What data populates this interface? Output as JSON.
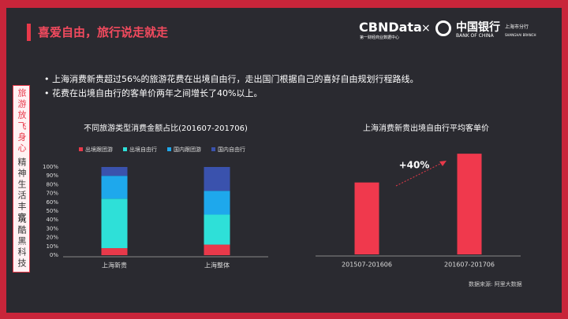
{
  "header": {
    "title": "喜爱自由，旅行说走就走",
    "cbn_logo": "CBNData",
    "cbn_sub": "第一财经商业数据中心",
    "times": "×",
    "boc_name": "中国银行",
    "boc_en": "BANK OF CHINA",
    "boc_branch": "上海市分行",
    "boc_branch_en": "SHANGHAI BRANCH"
  },
  "sidebar": [
    "旅游放飞身心",
    "精神生活丰富",
    "玩酷黑科技"
  ],
  "bullets": [
    "上海消费新贵超过56%的旅游花费在出境自由行，走出国门根据自己的喜好自由规划行程路线。",
    "花费在出境自由行的客单价两年之间增长了40%以上。"
  ],
  "source": "数据来源: 阿里大数据",
  "chart_data": [
    {
      "type": "bar",
      "stacked": true,
      "title": "不同旅游类型消费金额占比(201607-201706)",
      "categories": [
        "上海新贵",
        "上海整体"
      ],
      "series": [
        {
          "name": "出境跟团游",
          "color": "#e8394a",
          "values": [
            8,
            12
          ]
        },
        {
          "name": "出境自由行",
          "color": "#2ee0d8",
          "values": [
            56,
            34
          ]
        },
        {
          "name": "国内跟团游",
          "color": "#1ea8ec",
          "values": [
            26,
            27
          ]
        },
        {
          "name": "国内自由行",
          "color": "#3a52ad",
          "values": [
            10,
            27
          ]
        }
      ],
      "ylim": [
        0,
        100
      ],
      "yticks": [
        {
          "value": 0,
          "label": "0%"
        },
        {
          "value": 10,
          "label": "10%"
        },
        {
          "value": 20,
          "label": "20%"
        },
        {
          "value": 30,
          "label": "30%"
        },
        {
          "value": 40,
          "label": "40%"
        },
        {
          "value": 50,
          "label": "50%"
        },
        {
          "value": 60,
          "label": "60%"
        },
        {
          "value": 70,
          "label": "70%"
        },
        {
          "value": 80,
          "label": "80%"
        },
        {
          "value": 90,
          "label": "90%"
        },
        {
          "value": 100,
          "label": "100%"
        }
      ],
      "legend": "top"
    },
    {
      "type": "bar",
      "title": "上海消费新贵出境自由行平均客单价",
      "categories": [
        "201507-201606",
        "201607-201706"
      ],
      "values": [
        100,
        140
      ],
      "color": "#f0394d",
      "ylim": [
        0,
        150
      ],
      "annotation": "+40%"
    }
  ]
}
